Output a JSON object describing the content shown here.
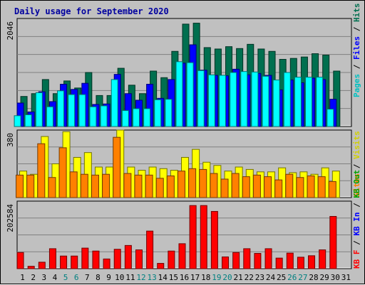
{
  "title": "Daily usage for September 2020",
  "chart_data": [
    {
      "type": "bar",
      "name": "hits-files-pages",
      "ytick": "2046",
      "categories": [
        "1",
        "2",
        "3",
        "4",
        "5",
        "6",
        "7",
        "8",
        "9",
        "10",
        "11",
        "12",
        "13",
        "14",
        "15",
        "16",
        "17",
        "18",
        "19",
        "20",
        "21",
        "22",
        "23",
        "24",
        "25",
        "26",
        "27",
        "28",
        "29",
        "30",
        "31"
      ],
      "weekend_days": [
        5,
        6,
        12,
        13,
        19,
        20,
        26,
        27
      ],
      "ylim": [
        0,
        2300
      ],
      "series": [
        {
          "name": "Hits",
          "color": "#006f4f",
          "values": [
            640,
            700,
            1000,
            700,
            970,
            820,
            1150,
            660,
            660,
            1240,
            880,
            700,
            1180,
            1040,
            1600,
            2180,
            2200,
            1680,
            1650,
            1700,
            1660,
            1750,
            1650,
            1600,
            1430,
            1450,
            1480,
            1550,
            1520,
            1180,
            0
          ]
        },
        {
          "name": "Files",
          "color": "#0000ff",
          "values": [
            500,
            310,
            740,
            530,
            900,
            790,
            920,
            470,
            480,
            1110,
            700,
            560,
            900,
            600,
            1000,
            1350,
            1740,
            1200,
            1090,
            1080,
            1220,
            1100,
            1130,
            1090,
            780,
            990,
            930,
            1030,
            1000,
            580,
            0
          ]
        },
        {
          "name": "Pages",
          "color": "#00ffff",
          "values": [
            230,
            250,
            720,
            420,
            760,
            680,
            680,
            420,
            440,
            1000,
            340,
            380,
            380,
            570,
            580,
            1380,
            1360,
            1190,
            1100,
            1090,
            1150,
            1170,
            1160,
            1070,
            990,
            1150,
            1050,
            1050,
            1050,
            370,
            0
          ]
        }
      ]
    },
    {
      "type": "bar",
      "name": "sites-visits",
      "ytick": "380",
      "ylim": [
        0,
        420
      ],
      "series": [
        {
          "name": "Visits",
          "color": "#ffff00",
          "values": [
            165,
            145,
            380,
            210,
            410,
            250,
            280,
            190,
            190,
            420,
            190,
            170,
            190,
            180,
            170,
            250,
            300,
            220,
            200,
            165,
            190,
            175,
            160,
            160,
            185,
            155,
            160,
            145,
            185,
            165,
            0
          ]
        },
        {
          "name": "Sites",
          "color": "#ff8000",
          "values": [
            140,
            140,
            335,
            125,
            310,
            160,
            145,
            140,
            145,
            375,
            150,
            140,
            140,
            120,
            135,
            165,
            180,
            175,
            150,
            115,
            150,
            130,
            140,
            130,
            110,
            145,
            125,
            135,
            130,
            100,
            0
          ]
        }
      ]
    },
    {
      "type": "bar",
      "name": "kbytes",
      "ytick": "202584",
      "ylim": [
        0,
        230000
      ],
      "series": [
        {
          "name": "KBytes",
          "color": "#ff0000",
          "values": [
            55000,
            8000,
            22000,
            68000,
            43000,
            43000,
            70000,
            60000,
            33000,
            66000,
            79000,
            64000,
            128000,
            18000,
            60000,
            85000,
            215000,
            215000,
            195000,
            40000,
            55000,
            68000,
            52000,
            68000,
            36000,
            53000,
            39000,
            44000,
            64000,
            178000,
            0
          ]
        }
      ]
    }
  ],
  "right_labels": {
    "top": [
      {
        "text": "Pages",
        "color": "#00c0c0"
      },
      {
        "text": "Files",
        "color": "#0000ff"
      },
      {
        "text": "Hits",
        "color": "#006f4f"
      }
    ],
    "middle": [
      {
        "text": "Sites",
        "color": "#ff8000"
      },
      {
        "text": "Visits",
        "color": "#d0d000"
      }
    ],
    "bottom": [
      {
        "text": "KB F",
        "color": "#ff0000"
      },
      {
        "text": "KB In",
        "color": "#0000ff"
      },
      {
        "text": "KB Out",
        "color": "#00a000"
      }
    ]
  }
}
